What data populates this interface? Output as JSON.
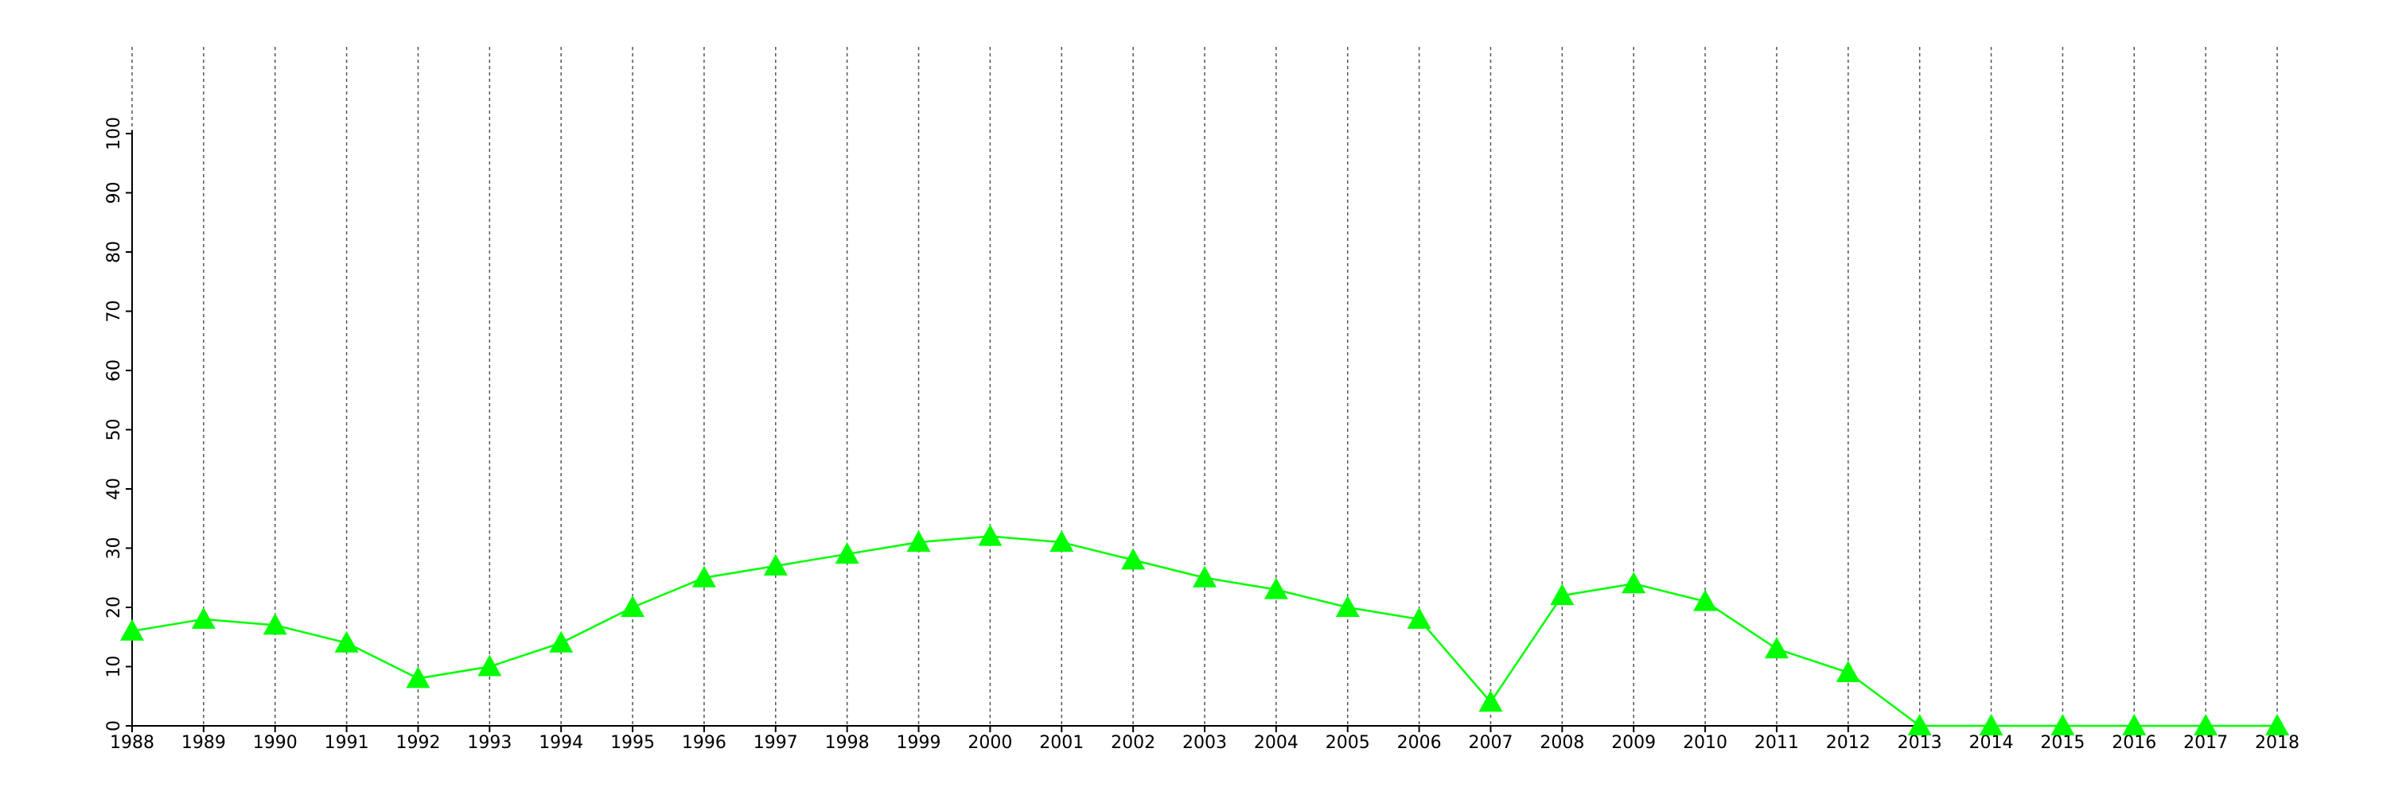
{
  "chart_data": {
    "type": "line",
    "x": [
      1988,
      1989,
      1990,
      1991,
      1992,
      1993,
      1994,
      1995,
      1996,
      1997,
      1998,
      1999,
      2000,
      2001,
      2002,
      2003,
      2004,
      2005,
      2006,
      2007,
      2008,
      2009,
      2010,
      2011,
      2012,
      2013,
      2014,
      2015,
      2016,
      2017,
      2018
    ],
    "values": [
      16,
      18,
      17,
      14,
      8,
      10,
      14,
      20,
      25,
      27,
      29,
      31,
      32,
      31,
      28,
      25,
      23,
      20,
      18,
      4,
      22,
      24,
      21,
      13,
      9,
      0,
      0,
      0,
      0,
      0,
      0
    ],
    "color": "#00ff00",
    "xlim": [
      1988,
      2018
    ],
    "xticks": [
      1988,
      1989,
      1990,
      1991,
      1992,
      1993,
      1994,
      1995,
      1996,
      1997,
      1998,
      1999,
      2000,
      2001,
      2002,
      2003,
      2004,
      2005,
      2006,
      2007,
      2008,
      2009,
      2010,
      2011,
      2012,
      2013,
      2014,
      2015,
      2016,
      2017,
      2018
    ],
    "ylim": [
      0,
      100
    ],
    "yticks": [
      0,
      10,
      20,
      30,
      40,
      50,
      60,
      70,
      80,
      90,
      100
    ],
    "grid": "x"
  }
}
